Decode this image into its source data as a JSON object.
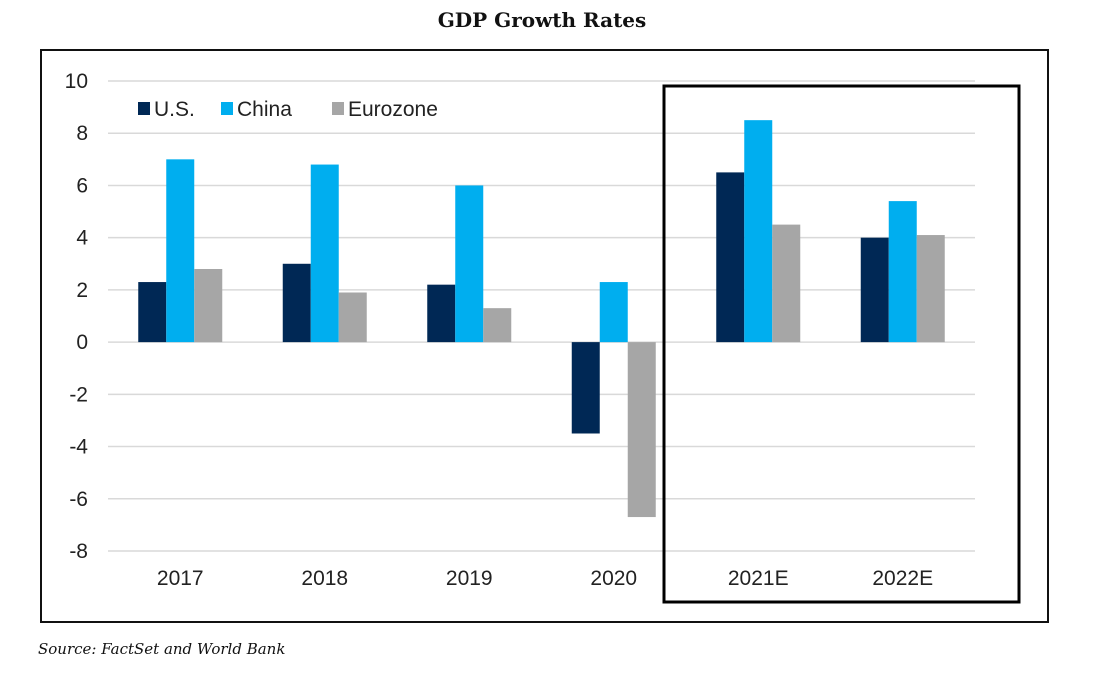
{
  "chart_data": {
    "type": "bar",
    "title": "GDP Growth Rates",
    "categories": [
      "2017",
      "2018",
      "2019",
      "2020",
      "2021E",
      "2022E"
    ],
    "series": [
      {
        "name": "U.S.",
        "color": "#002855",
        "values": [
          2.3,
          3.0,
          2.2,
          -3.5,
          6.5,
          4.0
        ]
      },
      {
        "name": "China",
        "color": "#00AEEF",
        "values": [
          7.0,
          6.8,
          6.0,
          2.3,
          8.5,
          5.4
        ]
      },
      {
        "name": "Eurozone",
        "color": "#A6A6A6",
        "values": [
          2.8,
          1.9,
          1.3,
          -6.7,
          4.5,
          4.1
        ]
      }
    ],
    "ylim": [
      -8,
      10
    ],
    "yticks": [
      "10",
      "8",
      "6",
      "4",
      "2",
      "0",
      "-2",
      "-4",
      "-6",
      "-8"
    ],
    "grid": true,
    "legend_position": "top-left",
    "highlighted_categories": [
      "2021E",
      "2022E"
    ],
    "xlabel": "",
    "ylabel": ""
  },
  "source_note": "Source: FactSet and World Bank"
}
